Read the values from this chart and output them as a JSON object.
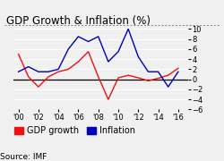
{
  "title": "GDP Growth & Inflation (%)",
  "source": "Source: IMF",
  "years": [
    2000,
    2001,
    2002,
    2003,
    2004,
    2005,
    2006,
    2007,
    2008,
    2009,
    2010,
    2011,
    2012,
    2013,
    2014,
    2015,
    2016
  ],
  "gdp_growth": [
    5.0,
    0.5,
    -1.5,
    0.5,
    1.5,
    2.0,
    3.5,
    5.5,
    0.5,
    -4.0,
    0.3,
    0.8,
    0.3,
    -0.3,
    0.2,
    0.8,
    2.2
  ],
  "inflation": [
    1.5,
    2.5,
    1.5,
    1.5,
    2.0,
    6.0,
    8.5,
    7.5,
    8.5,
    3.5,
    5.5,
    10.0,
    4.5,
    1.5,
    1.5,
    -1.5,
    1.5
  ],
  "gdp_color": "#ee1111",
  "inflation_color": "#0000bb",
  "ylim": [
    -6,
    10
  ],
  "bg_color": "#f0f0f0",
  "zero_line_color": "#000000",
  "title_fontsize": 8.5,
  "legend_fontsize": 7,
  "tick_fontsize": 6,
  "source_fontsize": 6.5,
  "xtick_years": [
    2000,
    2002,
    2004,
    2006,
    2008,
    2010,
    2012,
    2014,
    2016
  ],
  "xtick_labels": [
    "'00",
    "'02",
    "'04",
    "'06",
    "'08",
    "'10",
    "'12",
    "'14",
    "'16"
  ],
  "yticks": [
    -6,
    -4,
    -2,
    0,
    2,
    4,
    6,
    8,
    10
  ]
}
